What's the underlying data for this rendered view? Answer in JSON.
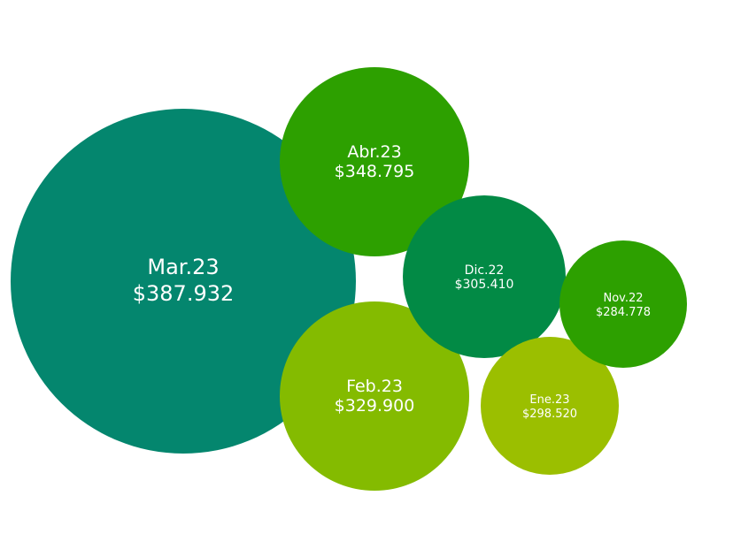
{
  "chart_data": {
    "type": "bubble",
    "title": "",
    "items": [
      {
        "label": "Mar.23",
        "value_text": "$387.932",
        "value": 387932,
        "color": "#04866E"
      },
      {
        "label": "Abr.23",
        "value_text": "$348.795",
        "value": 348795,
        "color": "#2DA000"
      },
      {
        "label": "Feb.23",
        "value_text": "$329.900",
        "value": 329900,
        "color": "#84BB00"
      },
      {
        "label": "Dic.22",
        "value_text": "$305.410",
        "value": 305410,
        "color": "#028A45"
      },
      {
        "label": "Ene.23",
        "value_text": "$298.520",
        "value": 298520,
        "color": "#9BBF00"
      },
      {
        "label": "Nov.22",
        "value_text": "$284.778",
        "value": 284778,
        "color": "#2DA000"
      }
    ]
  }
}
